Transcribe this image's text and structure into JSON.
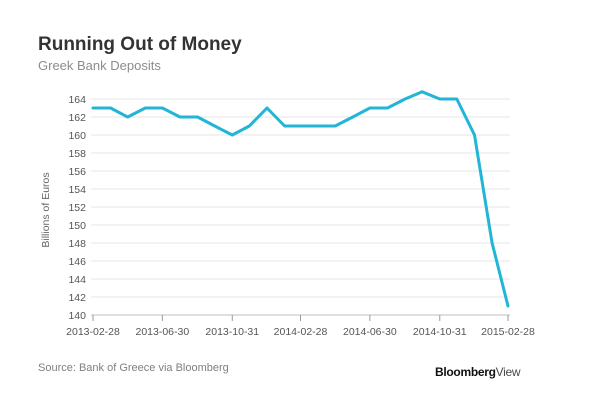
{
  "chart_data": {
    "type": "line",
    "title": "Running Out of Money",
    "subtitle": "Greek Bank Deposits",
    "ylabel": "Billions of Euros",
    "xlabel": "",
    "ylim": [
      140,
      165
    ],
    "yticks": [
      140,
      142,
      144,
      146,
      148,
      150,
      152,
      154,
      156,
      158,
      160,
      162,
      164
    ],
    "x_tick_labels": [
      "2013-02-28",
      "2013-06-30",
      "2013-10-31",
      "2014-02-28",
      "2014-06-30",
      "2014-10-31",
      "2015-02-28"
    ],
    "grid": true,
    "series_color": "#21b5d6",
    "series": [
      {
        "x": [
          "2013-02-28",
          "2013-03-31",
          "2013-04-30",
          "2013-05-31",
          "2013-06-30",
          "2013-07-31",
          "2013-08-31",
          "2013-09-30",
          "2013-10-31",
          "2013-11-30",
          "2013-12-31",
          "2014-01-31",
          "2014-02-28",
          "2014-03-31",
          "2014-04-30",
          "2014-05-31",
          "2014-06-30",
          "2014-07-31",
          "2014-08-31",
          "2014-09-30",
          "2014-10-31",
          "2014-11-30",
          "2014-12-31",
          "2015-01-31",
          "2015-02-28"
        ],
        "values": [
          163,
          163,
          162,
          163,
          163,
          162,
          162,
          161,
          160,
          161,
          163,
          161,
          161,
          161,
          161,
          162,
          163,
          163,
          164,
          164.8,
          164,
          164,
          160,
          148,
          141
        ]
      }
    ],
    "source": "Source: Bank of Greece via Bloomberg",
    "brand_part1": "Bloomberg",
    "brand_part2": "View"
  }
}
